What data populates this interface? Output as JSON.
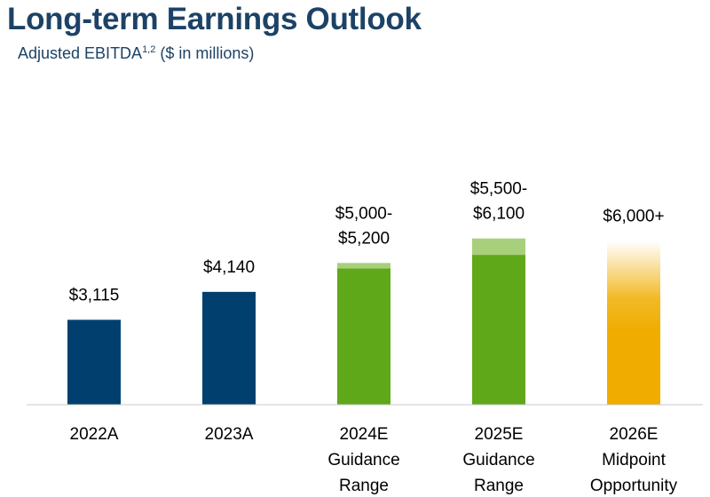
{
  "header": {
    "title": "Long-term Earnings Outlook",
    "subtitle_main": "Adjusted EBITDA",
    "subtitle_sup": "1,2",
    "subtitle_tail": " ($ in millions)"
  },
  "chart_data": {
    "type": "bar",
    "title": "Long-term Earnings Outlook",
    "subtitle": "Adjusted EBITDA1,2 ($ in millions)",
    "unit": "$ in millions",
    "ylim": [
      0,
      6400
    ],
    "grid": false,
    "legend": "none",
    "categories": [
      [
        "2022A"
      ],
      [
        "2023A"
      ],
      [
        "2024E",
        "Guidance",
        "Range"
      ],
      [
        "2025E",
        "Guidance",
        "Range"
      ],
      [
        "2026E",
        "Midpoint",
        "Opportunity"
      ]
    ],
    "bars": [
      {
        "kind": "actual",
        "value": 3115,
        "label": [
          "$3,115"
        ],
        "color": "#003f6e"
      },
      {
        "kind": "actual",
        "value": 4140,
        "label": [
          "$4,140"
        ],
        "color": "#003f6e"
      },
      {
        "kind": "range",
        "low": 5000,
        "high": 5200,
        "label": [
          "$5,000-",
          "$5,200"
        ],
        "color": "#5fa81a",
        "range_color": "#a8d07c"
      },
      {
        "kind": "range",
        "low": 5500,
        "high": 6100,
        "label": [
          "$5,500-",
          "$6,100"
        ],
        "color": "#5fa81a",
        "range_color": "#a8d07c"
      },
      {
        "kind": "opportunity",
        "value": 6000,
        "label": [
          "$6,000+"
        ],
        "color": "#f0ad00"
      }
    ]
  }
}
